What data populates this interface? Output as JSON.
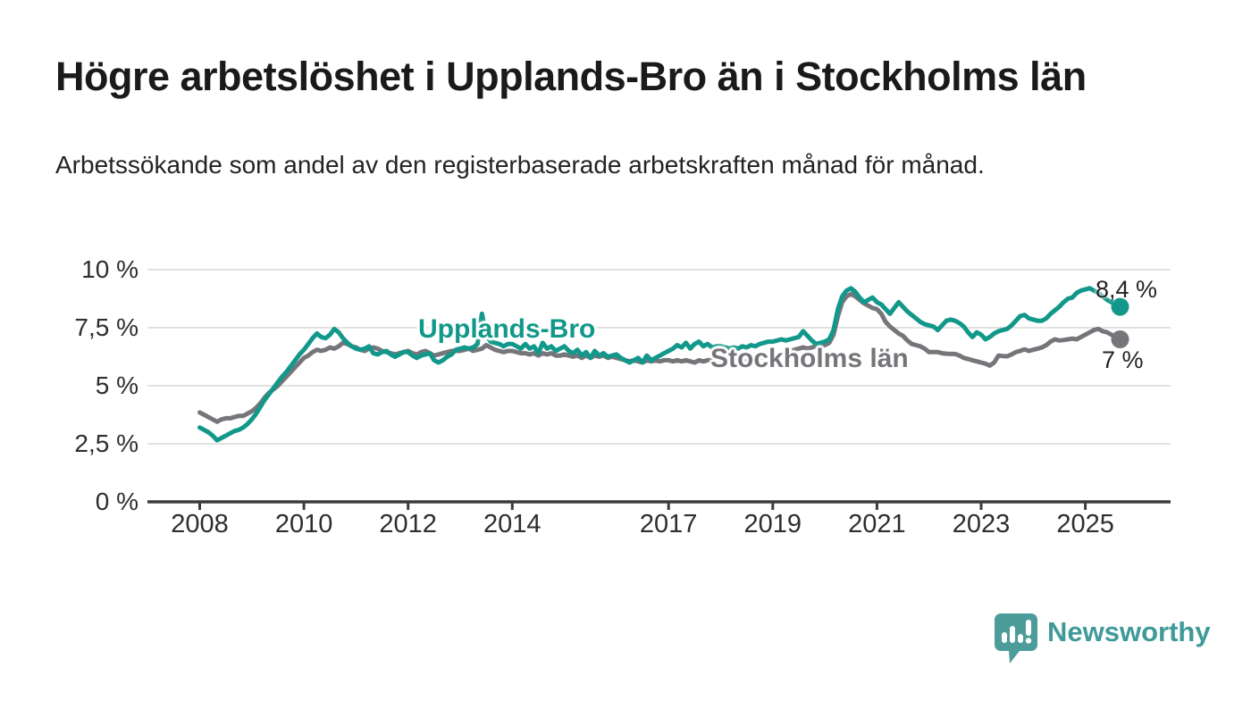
{
  "header": {
    "title": "Högre arbetslöshet i Upplands-Bro än i Stockholms län",
    "subtitle": "Arbetssökande som andel av den registerbaserade arbetskraften månad för månad."
  },
  "chart_data": {
    "type": "line",
    "title": "Högre arbetslöshet i Upplands-Bro än i Stockholms län",
    "xlabel": "",
    "ylabel": "",
    "unit": "%",
    "ylim": [
      0,
      10.3
    ],
    "grid": true,
    "legend_position": "inline-labels",
    "x_start": "2008-01",
    "x_end": "2025-09",
    "x_ticks": [
      2008,
      2010,
      2012,
      2014,
      2017,
      2019,
      2021,
      2023,
      2025
    ],
    "y_tick_labels": [
      "10 %",
      "7,5 %",
      "5 %",
      "2,5 %",
      "0 %"
    ],
    "y_tick_values": [
      10,
      7.5,
      5,
      2.5,
      0
    ],
    "series": [
      {
        "name": "Stockholms län",
        "color": "#76757a",
        "end_label": "7 %",
        "end_value": 7.0,
        "values": [
          3.85,
          3.75,
          3.65,
          3.55,
          3.45,
          3.55,
          3.6,
          3.6,
          3.65,
          3.7,
          3.7,
          3.8,
          3.9,
          4.05,
          4.25,
          4.5,
          4.7,
          4.85,
          5.0,
          5.2,
          5.4,
          5.6,
          5.8,
          6.0,
          6.2,
          6.3,
          6.45,
          6.55,
          6.5,
          6.55,
          6.65,
          6.6,
          6.7,
          6.85,
          6.8,
          6.7,
          6.65,
          6.55,
          6.5,
          6.6,
          6.65,
          6.6,
          6.5,
          6.45,
          6.4,
          6.35,
          6.4,
          6.45,
          6.5,
          6.4,
          6.35,
          6.45,
          6.5,
          6.4,
          6.3,
          6.35,
          6.4,
          6.45,
          6.5,
          6.5,
          6.5,
          6.55,
          6.6,
          6.5,
          6.55,
          6.6,
          6.75,
          6.65,
          6.55,
          6.5,
          6.45,
          6.5,
          6.5,
          6.45,
          6.4,
          6.4,
          6.35,
          6.4,
          6.3,
          6.4,
          6.35,
          6.4,
          6.3,
          6.3,
          6.35,
          6.3,
          6.25,
          6.3,
          6.2,
          6.3,
          6.2,
          6.3,
          6.25,
          6.3,
          6.2,
          6.25,
          6.2,
          6.15,
          6.1,
          6.05,
          6.1,
          6.05,
          6.0,
          6.1,
          6.05,
          6.1,
          6.05,
          6.1,
          6.1,
          6.05,
          6.1,
          6.05,
          6.1,
          6.05,
          6.0,
          6.1,
          6.05,
          6.1,
          6.1,
          6.15,
          6.1,
          6.05,
          6.0,
          6.05,
          6.0,
          6.1,
          6.05,
          6.15,
          6.1,
          6.2,
          6.25,
          6.3,
          6.3,
          6.35,
          6.4,
          6.45,
          6.5,
          6.55,
          6.6,
          6.65,
          6.6,
          6.65,
          6.7,
          6.7,
          6.75,
          6.85,
          7.2,
          8.0,
          8.6,
          8.85,
          8.95,
          8.85,
          8.7,
          8.55,
          8.45,
          8.35,
          8.3,
          8.1,
          7.75,
          7.55,
          7.4,
          7.25,
          7.15,
          6.95,
          6.8,
          6.75,
          6.7,
          6.6,
          6.45,
          6.45,
          6.45,
          6.4,
          6.38,
          6.37,
          6.37,
          6.3,
          6.2,
          6.15,
          6.1,
          6.05,
          6.0,
          5.95,
          5.87,
          6.0,
          6.3,
          6.28,
          6.27,
          6.35,
          6.45,
          6.5,
          6.57,
          6.5,
          6.55,
          6.6,
          6.65,
          6.75,
          6.9,
          7.0,
          6.95,
          6.97,
          7.0,
          7.03,
          7.0,
          7.1,
          7.2,
          7.3,
          7.4,
          7.45,
          7.35,
          7.3,
          7.2,
          7.1,
          7.0
        ]
      },
      {
        "name": "Upplands-Bro",
        "color": "#11988a",
        "end_label": "8,4 %",
        "end_value": 8.4,
        "values": [
          3.2,
          3.1,
          3.0,
          2.85,
          2.65,
          2.75,
          2.85,
          2.95,
          3.05,
          3.1,
          3.2,
          3.35,
          3.55,
          3.8,
          4.1,
          4.4,
          4.65,
          4.9,
          5.15,
          5.4,
          5.6,
          5.85,
          6.1,
          6.35,
          6.55,
          6.8,
          7.05,
          7.25,
          7.1,
          7.05,
          7.2,
          7.45,
          7.3,
          7.05,
          6.85,
          6.7,
          6.6,
          6.55,
          6.6,
          6.7,
          6.4,
          6.35,
          6.45,
          6.5,
          6.35,
          6.25,
          6.35,
          6.45,
          6.45,
          6.3,
          6.2,
          6.3,
          6.35,
          6.4,
          6.1,
          6.0,
          6.1,
          6.25,
          6.35,
          6.55,
          6.6,
          6.65,
          6.6,
          6.65,
          6.8,
          8.1,
          7.2,
          6.9,
          6.85,
          6.8,
          6.7,
          6.8,
          6.8,
          6.7,
          6.6,
          6.8,
          6.6,
          6.7,
          6.4,
          6.85,
          6.6,
          6.7,
          6.5,
          6.6,
          6.7,
          6.5,
          6.4,
          6.55,
          6.3,
          6.45,
          6.2,
          6.5,
          6.3,
          6.4,
          6.25,
          6.3,
          6.35,
          6.2,
          6.1,
          6.0,
          6.1,
          6.2,
          6.0,
          6.3,
          6.1,
          6.2,
          6.3,
          6.4,
          6.5,
          6.6,
          6.75,
          6.65,
          6.85,
          6.6,
          6.8,
          6.9,
          6.7,
          6.8,
          6.65,
          6.7,
          6.7,
          6.65,
          6.6,
          6.65,
          6.6,
          6.7,
          6.65,
          6.75,
          6.7,
          6.8,
          6.85,
          6.9,
          6.9,
          6.95,
          7.0,
          6.95,
          7.0,
          7.05,
          7.1,
          7.35,
          7.15,
          6.95,
          6.8,
          6.85,
          6.9,
          7.0,
          7.4,
          8.3,
          8.85,
          9.1,
          9.2,
          9.05,
          8.8,
          8.6,
          8.7,
          8.8,
          8.6,
          8.5,
          8.3,
          8.1,
          8.35,
          8.6,
          8.4,
          8.2,
          8.05,
          7.9,
          7.75,
          7.65,
          7.6,
          7.55,
          7.4,
          7.6,
          7.8,
          7.85,
          7.8,
          7.7,
          7.55,
          7.3,
          7.1,
          7.3,
          7.2,
          7.0,
          7.1,
          7.25,
          7.35,
          7.4,
          7.45,
          7.6,
          7.8,
          8.0,
          8.05,
          7.9,
          7.85,
          7.8,
          7.8,
          7.9,
          8.1,
          8.25,
          8.4,
          8.6,
          8.75,
          8.8,
          9.0,
          9.1,
          9.15,
          9.2,
          9.1,
          9.0,
          8.85,
          8.7,
          8.6,
          8.5,
          8.4
        ]
      }
    ]
  },
  "style": {
    "accent_teal": "#11988a",
    "accent_gray": "#76757a",
    "gridline": "#d9d9d9",
    "axis": "#3c3c3c",
    "logo_teal": "#4c9c9a",
    "brand_text_color": "#3f9a98"
  },
  "footer": {
    "brand": "Newsworthy"
  }
}
